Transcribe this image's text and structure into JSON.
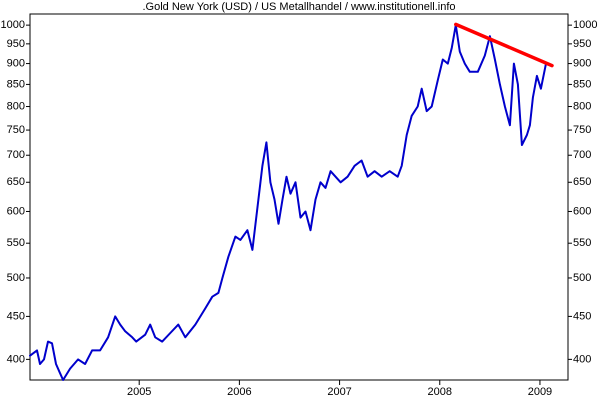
{
  "chart_data": {
    "type": "line",
    "title": ".Gold New York (USD) / US Metallhandel / www.institutionell.info",
    "log_y": true,
    "xlim": [
      2003.91,
      2009.28
    ],
    "xticks": [
      2005,
      2006,
      2007,
      2008,
      2009
    ],
    "ylim": [
      378,
      1031
    ],
    "yticks": [
      400,
      450,
      500,
      550,
      600,
      650,
      700,
      750,
      800,
      850,
      900,
      950,
      1000
    ],
    "right_axis_labels": true,
    "series": [
      {
        "color": "#0000cc",
        "width": 2,
        "x": [
          2003.91,
          2003.98,
          2004.01,
          2004.05,
          2004.09,
          2004.13,
          2004.17,
          2004.21,
          2004.24,
          2004.31,
          2004.39,
          2004.46,
          2004.53,
          2004.61,
          2004.69,
          2004.76,
          2004.81,
          2004.86,
          2004.93,
          2004.97,
          2005.06,
          2005.11,
          2005.16,
          2005.23,
          2005.31,
          2005.39,
          2005.46,
          2005.56,
          2005.66,
          2005.73,
          2005.79,
          2005.83,
          2005.89,
          2005.96,
          2006.01,
          2006.08,
          2006.13,
          2006.19,
          2006.23,
          2006.27,
          2006.31,
          2006.35,
          2006.39,
          2006.43,
          2006.47,
          2006.51,
          2006.56,
          2006.61,
          2006.66,
          2006.71,
          2006.76,
          2006.81,
          2006.86,
          2006.91,
          2007.01,
          2007.08,
          2007.15,
          2007.22,
          2007.28,
          2007.35,
          2007.42,
          2007.5,
          2007.58,
          2007.62,
          2007.67,
          2007.72,
          2007.78,
          2007.82,
          2007.87,
          2007.92,
          2007.98,
          2008.03,
          2008.08,
          2008.12,
          2008.16,
          2008.2,
          2008.25,
          2008.3,
          2008.38,
          2008.45,
          2008.5,
          2008.55,
          2008.6,
          2008.65,
          2008.7,
          2008.74,
          2008.78,
          2008.82,
          2008.87,
          2008.9,
          2008.93,
          2008.97,
          2009.01,
          2009.06
        ],
        "values": [
          404,
          410,
          395,
          400,
          420,
          418,
          395,
          385,
          378,
          390,
          400,
          395,
          410,
          410,
          425,
          450,
          440,
          432,
          425,
          420,
          428,
          440,
          425,
          420,
          430,
          440,
          425,
          440,
          460,
          475,
          480,
          500,
          530,
          560,
          555,
          570,
          540,
          620,
          680,
          725,
          650,
          620,
          580,
          620,
          660,
          630,
          650,
          590,
          600,
          570,
          620,
          650,
          640,
          670,
          650,
          660,
          680,
          690,
          660,
          670,
          660,
          670,
          660,
          680,
          740,
          780,
          800,
          840,
          790,
          800,
          860,
          910,
          900,
          940,
          1000,
          930,
          900,
          880,
          880,
          920,
          970,
          910,
          850,
          800,
          760,
          900,
          850,
          720,
          740,
          760,
          820,
          870,
          840,
          900
        ]
      },
      {
        "color": "#ff0000",
        "width": 3.5,
        "x": [
          2008.16,
          2009.12
        ],
        "values": [
          1002,
          895
        ]
      }
    ]
  }
}
